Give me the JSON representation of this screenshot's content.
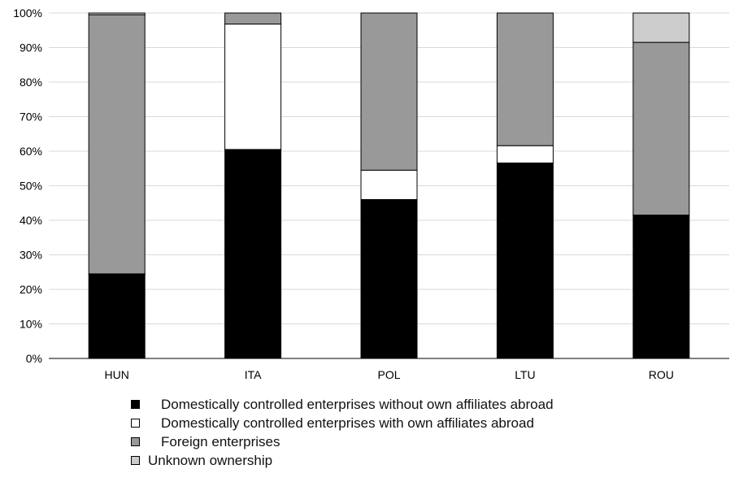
{
  "chart_data": {
    "type": "bar",
    "stacked": true,
    "categories": [
      "HUN",
      "ITA",
      "POL",
      "LTU",
      "ROU"
    ],
    "y_tick_labels": [
      "0%",
      "10%",
      "20%",
      "30%",
      "40%",
      "50%",
      "60%",
      "70%",
      "80%",
      "90%",
      "100%"
    ],
    "ylim": [
      0,
      100
    ],
    "grid": true,
    "legend_position": "bottom",
    "series": [
      {
        "name": "Domestically controlled enterprises without own affiliates abroad",
        "color": "#000000",
        "values": [
          24.3,
          60.5,
          46.0,
          56.6,
          41.5
        ]
      },
      {
        "name": "Domestically controlled enterprises with own affiliates abroad",
        "color": "#ffffff",
        "values": [
          0.2,
          36.3,
          8.5,
          5.0,
          0.0
        ]
      },
      {
        "name": "Foreign enterprises",
        "color": "#999999",
        "values": [
          75.0,
          3.2,
          45.5,
          38.4,
          50.0
        ]
      },
      {
        "name": "Unknown ownership",
        "color": "#cccccc",
        "values": [
          0.5,
          0.0,
          0.0,
          0.0,
          8.5
        ]
      }
    ]
  }
}
